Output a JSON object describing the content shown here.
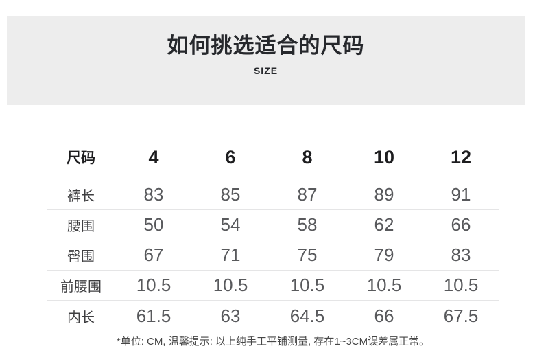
{
  "banner": {
    "title": "如何挑选适合的尺码",
    "subtitle": "SIZE"
  },
  "size_table": {
    "header": {
      "label": "尺码",
      "sizes": [
        "4",
        "6",
        "8",
        "10",
        "12"
      ]
    },
    "rows": [
      {
        "label": "裤长",
        "values": [
          "83",
          "85",
          "87",
          "89",
          "91"
        ]
      },
      {
        "label": "腰围",
        "values": [
          "50",
          "54",
          "58",
          "62",
          "66"
        ]
      },
      {
        "label": "臀围",
        "values": [
          "67",
          "71",
          "75",
          "79",
          "83"
        ]
      },
      {
        "label": "前腰围",
        "values": [
          "10.5",
          "10.5",
          "10.5",
          "10.5",
          "10.5"
        ]
      },
      {
        "label": "内长",
        "values": [
          "61.5",
          "63",
          "64.5",
          "66",
          "67.5"
        ]
      }
    ],
    "footnote": "*单位: CM, 温馨提示: 以上纯手工平铺测量, 存在1~3CM误差属正常。"
  },
  "colors": {
    "page_background": "#ffffff",
    "banner_background": "#ededed",
    "title_text": "#26282c",
    "header_text": "#1d1d1f",
    "row_label_text": "#3e3e40",
    "cell_text": "#58595c",
    "divider": "#e5e5e6",
    "footnote_text": "#474747"
  },
  "chart_data": {
    "type": "table",
    "title": "如何挑选适合的尺码",
    "subtitle": "SIZE",
    "columns": [
      "尺码",
      "4",
      "6",
      "8",
      "10",
      "12"
    ],
    "rows": [
      [
        "裤长",
        83,
        85,
        87,
        89,
        91
      ],
      [
        "腰围",
        50,
        54,
        58,
        62,
        66
      ],
      [
        "臀围",
        67,
        71,
        75,
        79,
        83
      ],
      [
        "前腰围",
        10.5,
        10.5,
        10.5,
        10.5,
        10.5
      ],
      [
        "内长",
        61.5,
        63,
        64.5,
        66,
        67.5
      ]
    ],
    "unit": "CM",
    "note": "*单位: CM, 温馨提示: 以上纯手工平铺测量, 存在1~3CM误差属正常。"
  }
}
